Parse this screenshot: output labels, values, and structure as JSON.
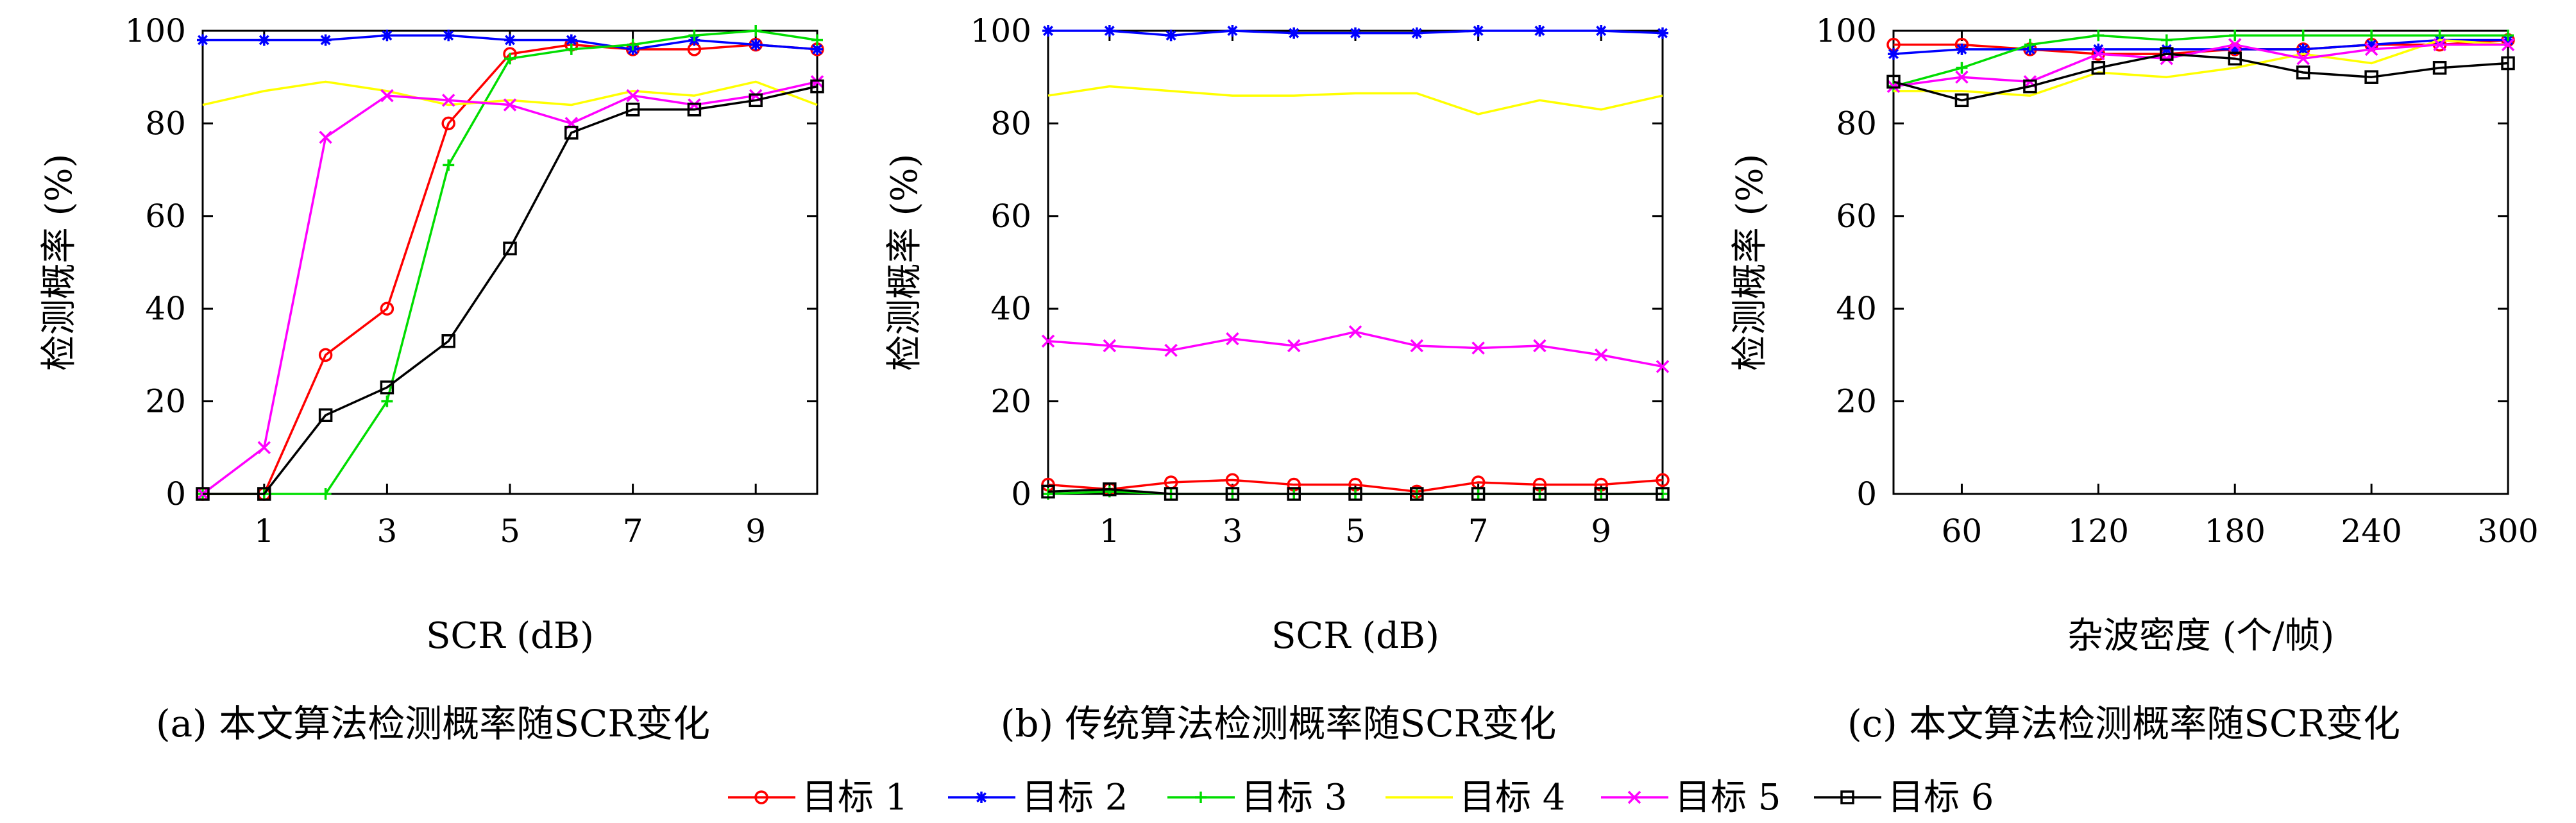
{
  "legend": [
    {
      "name": "目标 1",
      "color": "#ff0000",
      "marker": "circle"
    },
    {
      "name": "目标 2",
      "color": "#0000ff",
      "marker": "star"
    },
    {
      "name": "目标 3",
      "color": "#00dd00",
      "marker": "plus"
    },
    {
      "name": "目标 4",
      "color": "#ffff00",
      "marker": "none"
    },
    {
      "name": "目标 5",
      "color": "#ff00ff",
      "marker": "x"
    },
    {
      "name": "目标 6",
      "color": "#000000",
      "marker": "square"
    }
  ],
  "chart_data": [
    {
      "type": "line",
      "caption": "(a) 本文算法检测概率随SCR变化",
      "xlabel": "SCR (dB)",
      "ylabel": "检测概率 (%)",
      "xlim": [
        0,
        10
      ],
      "ylim": [
        0,
        100
      ],
      "xticks": [
        1,
        3,
        5,
        7,
        9
      ],
      "yticks": [
        0,
        20,
        40,
        60,
        80,
        100
      ],
      "x": [
        0,
        1,
        2,
        3,
        4,
        5,
        6,
        7,
        8,
        9,
        10
      ],
      "series": [
        {
          "name": "目标 1",
          "values": [
            0,
            0,
            30,
            40,
            80,
            95,
            97,
            96,
            96,
            97,
            96
          ]
        },
        {
          "name": "目标 2",
          "values": [
            98,
            98,
            98,
            99,
            99,
            98,
            98,
            96,
            98,
            97,
            96
          ]
        },
        {
          "name": "目标 3",
          "values": [
            0,
            0,
            0,
            20,
            71,
            94,
            96,
            97,
            99,
            100,
            98
          ]
        },
        {
          "name": "目标 4",
          "values": [
            84,
            87,
            89,
            87,
            84,
            85,
            84,
            87,
            86,
            89,
            84
          ]
        },
        {
          "name": "目标 5",
          "values": [
            0,
            10,
            77,
            86,
            85,
            84,
            80,
            86,
            84,
            86,
            89
          ]
        },
        {
          "name": "目标 6",
          "values": [
            0,
            0,
            17,
            23,
            33,
            53,
            78,
            83,
            83,
            85,
            88
          ]
        }
      ]
    },
    {
      "type": "line",
      "caption": "(b) 传统算法检测概率随SCR变化",
      "xlabel": "SCR (dB)",
      "ylabel": "检测概率 (%)",
      "xlim": [
        0,
        10
      ],
      "ylim": [
        0,
        100
      ],
      "xticks": [
        1,
        3,
        5,
        7,
        9
      ],
      "yticks": [
        0,
        20,
        40,
        60,
        80,
        100
      ],
      "x": [
        0,
        1,
        2,
        3,
        4,
        5,
        6,
        7,
        8,
        9,
        10
      ],
      "series": [
        {
          "name": "目标 1",
          "values": [
            2,
            1,
            2.5,
            3,
            2,
            2,
            0.5,
            2.5,
            2,
            2,
            3
          ]
        },
        {
          "name": "目标 2",
          "values": [
            100,
            100,
            99,
            100,
            99.5,
            99.5,
            99.5,
            100,
            100,
            100,
            99.5
          ]
        },
        {
          "name": "目标 3",
          "values": [
            0,
            0.5,
            0,
            0,
            0,
            0,
            0,
            0,
            0,
            0,
            0
          ]
        },
        {
          "name": "目标 4",
          "values": [
            86,
            88,
            87,
            86,
            86,
            86.5,
            86.5,
            82,
            85,
            83,
            86
          ]
        },
        {
          "name": "目标 5",
          "values": [
            33,
            32,
            31,
            33.5,
            32,
            35,
            32,
            31.5,
            32,
            30,
            27.5
          ]
        },
        {
          "name": "目标 6",
          "values": [
            0.5,
            1,
            0,
            0,
            0,
            0,
            0,
            0,
            0,
            0,
            0
          ]
        }
      ]
    },
    {
      "type": "line",
      "caption": "(c) 本文算法检测概率随SCR变化",
      "xlabel": "杂波密度 (个/帧)",
      "ylabel": "检测概率 (%)",
      "xlim": [
        30,
        300
      ],
      "ylim": [
        0,
        100
      ],
      "xticks": [
        60,
        120,
        180,
        240,
        300
      ],
      "yticks": [
        0,
        20,
        40,
        60,
        80,
        100
      ],
      "x": [
        30,
        60,
        90,
        120,
        150,
        180,
        210,
        240,
        270,
        300
      ],
      "series": [
        {
          "name": "目标 1",
          "values": [
            97,
            97,
            96,
            95,
            95,
            96,
            96,
            97,
            97,
            98
          ]
        },
        {
          "name": "目标 2",
          "values": [
            95,
            96,
            96,
            96,
            96,
            96,
            96,
            97,
            98,
            98
          ]
        },
        {
          "name": "目标 3",
          "values": [
            88,
            92,
            97,
            99,
            98,
            99,
            99,
            99,
            99,
            99
          ]
        },
        {
          "name": "目标 4",
          "values": [
            87,
            87,
            86,
            91,
            90,
            92,
            95,
            93,
            98,
            97
          ]
        },
        {
          "name": "目标 5",
          "values": [
            88,
            90,
            89,
            95,
            94,
            97,
            94,
            96,
            97,
            97
          ]
        },
        {
          "name": "目标 6",
          "values": [
            89,
            85,
            88,
            92,
            95,
            94,
            91,
            90,
            92,
            93
          ]
        }
      ]
    }
  ]
}
